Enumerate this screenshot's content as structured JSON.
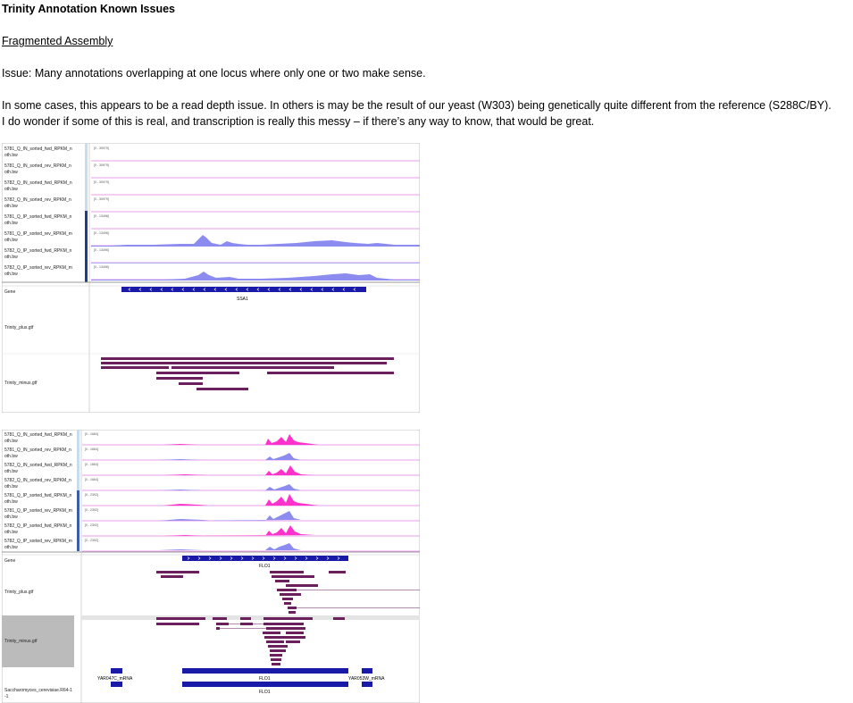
{
  "document": {
    "title": "Trinity Annotation Known Issues",
    "section_heading": "Fragmented Assembly",
    "issue": "Issue: Many annotations overlapping at one locus where only one or two make sense.",
    "paragraph_line1": "In some cases, this appears to be a read depth issue. In others is may be the result of our yeast (W303) being genetically quite different from the reference (S288C/BY).",
    "paragraph_line2": "I do wonder if some of this is real, and transcription is really this messy – if there’s any way to know, that would be great."
  },
  "screenshot1": {
    "tracks": [
      {
        "name": "5781_Q_IN_sorted_fwd_RPKM_n",
        "suffix": "oth.bw",
        "scale": "[0 - 30979]"
      },
      {
        "name": "5781_Q_IN_sorted_rev_RPKM_n",
        "suffix": "oth.bw",
        "scale": "[0 - 30979]"
      },
      {
        "name": "5782_Q_IN_sorted_fwd_RPKM_n",
        "suffix": "oth.bw",
        "scale": "[0 - 30979]"
      },
      {
        "name": "5782_Q_IN_sorted_rev_RPKM_n",
        "suffix": "oth.bw",
        "scale": "[0 - 30979]"
      },
      {
        "name": "5781_Q_IP_sorted_fwd_RPKM_n",
        "suffix": "oth.bw",
        "scale": "[0 - 13496]"
      },
      {
        "name": "5781_Q_IP_sorted_rev_RPKM_m",
        "suffix": "oth.bw",
        "scale": "[0 - 13496]"
      },
      {
        "name": "5782_Q_IP_sorted_fwd_RPKM_n",
        "suffix": "oth.bw",
        "scale": "[0 - 13496]"
      },
      {
        "name": "5782_Q_IP_sorted_rev_RPKM_m",
        "suffix": "oth.bw",
        "scale": "[0 - 13496]"
      }
    ],
    "gene_label": "Gene",
    "gene_name": "SSA1",
    "plus_label": "Trinity_plus.gtf",
    "minus_label": "Trinity_minus.gtf"
  },
  "screenshot2": {
    "tracks": [
      {
        "name": "5781_Q_IN_sorted_fwd_RPKM_n",
        "suffix": "oth.bw",
        "scale": "[0 - 1664]"
      },
      {
        "name": "5781_Q_IN_sorted_rev_RPKM_n",
        "suffix": "oth.bw",
        "scale": "[0 - 1664]"
      },
      {
        "name": "5782_Q_IN_sorted_fwd_RPKM_n",
        "suffix": "oth.bw",
        "scale": "[0 - 1664]"
      },
      {
        "name": "5782_Q_IN_sorted_rev_RPKM_n",
        "suffix": "oth.bw",
        "scale": "[0 - 1664]"
      },
      {
        "name": "5781_Q_IP_sorted_fwd_RPKM_n",
        "suffix": "oth.bw",
        "scale": "[0 - 2392]"
      },
      {
        "name": "5781_Q_IP_sorted_rev_RPKM_m",
        "suffix": "oth.bw",
        "scale": "[0 - 2392]"
      },
      {
        "name": "5782_Q_IP_sorted_fwd_RPKM_n",
        "suffix": "oth.bw",
        "scale": "[0 - 2392]"
      },
      {
        "name": "5782_Q_IP_sorted_rev_RPKM_m",
        "suffix": "oth.bw",
        "scale": "[0 - 2392]"
      }
    ],
    "gene_label": "Gene",
    "gene_name": "FLO1",
    "plus_label": "Trinity_plus.gtf",
    "minus_label": "Trinity_minus.gtf",
    "ref_label_line1": "Saccharomyces_cerevisiae.R64-1",
    "ref_label_line2": "-1",
    "ref_features": [
      "YAR047C_mRNA",
      "FLO1",
      "YAR053W_mRNA",
      "FLO1"
    ]
  },
  "colors": {
    "forward_signal": "#ff33cc",
    "reverse_signal": "#8c8cff",
    "ip_signal": "#8080ee",
    "gene": "#1a1aa8",
    "trinity_transcript": "#6b1f5c",
    "track_line": "#e080e0",
    "selected_bg": "#bbbbbb"
  }
}
